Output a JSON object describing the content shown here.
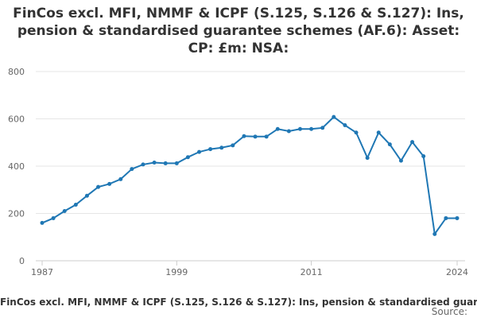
{
  "chart_data": {
    "type": "line",
    "title": "FinCos excl. MFI, NMMF & ICPF (S.125, S.126 & S.127): Ins,\npension & standardised guarantee schemes (AF.6): Asset:\nCP: £m: NSA:",
    "series": [
      {
        "name": "FinCos excl. MFI, NMMF & ICPF (S.125, S.126 & S.127): Ins, pension & standardised guarantee schemes (AF.6): Asset: CP: £m: NSA:",
        "color": "#1f77b4",
        "x": [
          1987,
          1988,
          1989,
          1990,
          1991,
          1992,
          1993,
          1994,
          1995,
          1996,
          1997,
          1998,
          1999,
          2000,
          2001,
          2002,
          2003,
          2004,
          2005,
          2006,
          2007,
          2008,
          2009,
          2010,
          2011,
          2012,
          2013,
          2014,
          2015,
          2016,
          2017,
          2018,
          2019,
          2020,
          2021,
          2022,
          2023,
          2024
        ],
        "values": [
          160,
          180,
          210,
          237,
          275,
          312,
          325,
          345,
          388,
          407,
          415,
          412,
          412,
          438,
          460,
          472,
          478,
          488,
          527,
          525,
          525,
          557,
          548,
          557,
          557,
          562,
          608,
          573,
          542,
          435,
          542,
          492,
          423,
          502,
          442,
          113,
          180,
          180
        ]
      }
    ],
    "x_ticks": [
      "1987",
      "1999",
      "2011",
      "2024"
    ],
    "y_ticks": [
      "0",
      "200",
      "400",
      "600",
      "800"
    ],
    "ylim": [
      0,
      800
    ],
    "xlim": [
      1987,
      2024
    ],
    "grid": true,
    "legend_placement": "bottom",
    "source_label": "Source:"
  }
}
